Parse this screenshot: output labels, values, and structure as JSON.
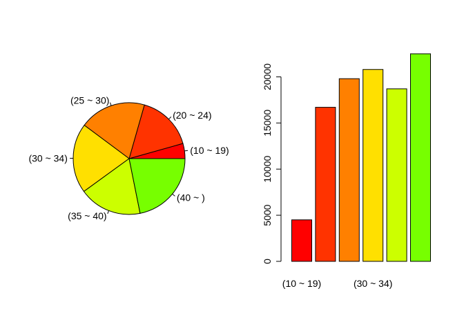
{
  "chart_data": [
    {
      "type": "pie",
      "labels": [
        "(10 ~ 19)",
        "(20 ~ 24)",
        "(25 ~ 30)",
        "(30 ~ 34)",
        "(35 ~ 40)",
        "(40 ~ )"
      ],
      "values": [
        4500,
        16700,
        19800,
        20800,
        18700,
        22500
      ],
      "colors": [
        "#FF0000",
        "#FF3300",
        "#FF8000",
        "#FFE000",
        "#CCFF00",
        "#77FF00"
      ],
      "start_angle_deg": 0,
      "direction": "counterclockwise",
      "border_color": "#000000"
    },
    {
      "type": "bar",
      "categories": [
        "(10 ~ 19)",
        "(20 ~ 24)",
        "(25 ~ 30)",
        "(30 ~ 34)",
        "(35 ~ 40)",
        "(40 ~ )"
      ],
      "values": [
        4500,
        16700,
        19800,
        20800,
        18700,
        22500
      ],
      "colors": [
        "#FF0000",
        "#FF3300",
        "#FF8000",
        "#FFE000",
        "#CCFF00",
        "#77FF00"
      ],
      "shown_category_labels": [
        "(10 ~ 19)",
        "(30 ~ 34)"
      ],
      "y_ticks": [
        "0",
        "5000",
        "10000",
        "15000",
        "20000"
      ],
      "ylim": [
        0,
        22500
      ],
      "grid": false,
      "border_color": "#000000"
    }
  ]
}
